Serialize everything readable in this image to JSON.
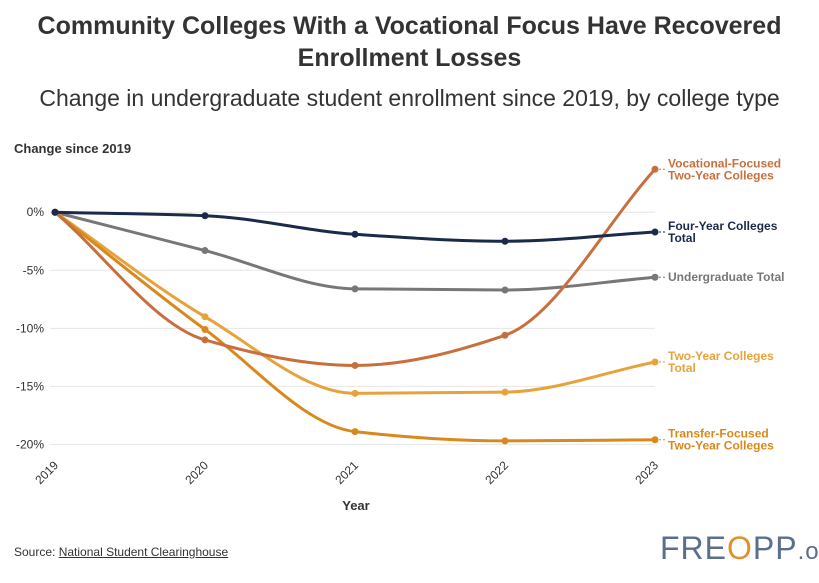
{
  "chart_data": {
    "type": "line",
    "title": "Community Colleges With a Vocational Focus Have Recovered Enrollment Losses",
    "subtitle": "Change in undergraduate student enrollment since 2019, by college type",
    "ylabel": "Change since 2019",
    "xlabel": "Year",
    "x": [
      "2019",
      "2020",
      "2021",
      "2022",
      "2023"
    ],
    "ylim": [
      -21,
      4.5
    ],
    "yticks": [
      {
        "value": 0,
        "label": "0%"
      },
      {
        "value": -5,
        "label": "-5%"
      },
      {
        "value": -10,
        "label": "-10%"
      },
      {
        "value": -15,
        "label": "-15%"
      },
      {
        "value": -20,
        "label": "-20%"
      }
    ],
    "grid": true,
    "series": [
      {
        "name": "Undergraduate Total",
        "label_lines": [
          "Undergraduate Total"
        ],
        "color": "#777777",
        "values": [
          0,
          -3.3,
          -6.6,
          -6.7,
          -5.6
        ]
      },
      {
        "name": "Two-Year Colleges Total",
        "label_lines": [
          "Two-Year Colleges",
          "Total"
        ],
        "color": "#e8a23c",
        "values": [
          0,
          -9.0,
          -15.6,
          -15.5,
          -12.9
        ]
      },
      {
        "name": "Transfer-Focused Two-Year Colleges",
        "label_lines": [
          "Transfer-Focused",
          "Two-Year Colleges"
        ],
        "color": "#d9891c",
        "values": [
          0,
          -10.1,
          -18.9,
          -19.7,
          -19.6
        ]
      },
      {
        "name": "Vocational-Focused Two-Year Colleges",
        "label_lines": [
          "Vocational-Focused",
          "Two-Year Colleges"
        ],
        "color": "#c8703d",
        "values": [
          0,
          -11.0,
          -13.2,
          -10.6,
          3.7
        ]
      },
      {
        "name": "Four-Year Colleges Total",
        "label_lines": [
          "Four-Year Colleges",
          "Total"
        ],
        "color": "#1a2a4a",
        "values": [
          0,
          -0.3,
          -1.9,
          -2.5,
          -1.7
        ]
      }
    ]
  },
  "source": {
    "prefix": "Source: ",
    "link_text": "National Student Clearinghouse"
  },
  "logo": {
    "part1": "FRE",
    "part2": "O",
    "part3": "PP",
    "part4": ".org"
  }
}
